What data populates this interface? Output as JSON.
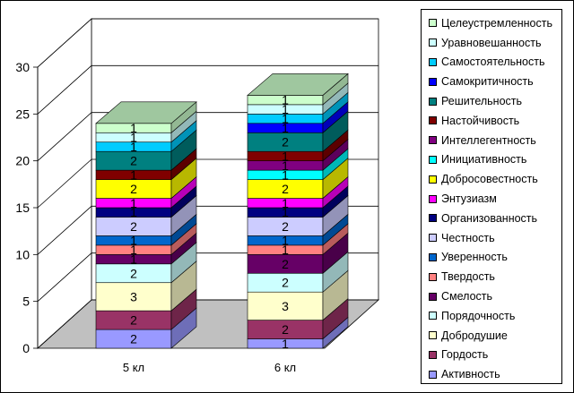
{
  "chart_data": {
    "type": "bar",
    "stacked": true,
    "three_d": true,
    "categories": [
      "5 кл",
      "6 кл"
    ],
    "ylim": [
      0,
      30
    ],
    "yticks": [
      0,
      5,
      10,
      15,
      20,
      25,
      30
    ],
    "grid": true,
    "legend_position": "right",
    "series": [
      {
        "name": "Активность",
        "color": "#9999ff",
        "values": [
          2,
          1
        ]
      },
      {
        "name": "Гордость",
        "color": "#993366",
        "values": [
          2,
          2
        ]
      },
      {
        "name": "Добродушие",
        "color": "#ffffcc",
        "values": [
          3,
          3
        ]
      },
      {
        "name": "Порядочность",
        "color": "#ccffff",
        "values": [
          2,
          2
        ]
      },
      {
        "name": "Смелость",
        "color": "#660066",
        "values": [
          1,
          2
        ]
      },
      {
        "name": "Твердость",
        "color": "#ff8080",
        "values": [
          1,
          1
        ]
      },
      {
        "name": "Уверенность",
        "color": "#0066cc",
        "values": [
          1,
          1
        ]
      },
      {
        "name": "Честность",
        "color": "#ccccff",
        "values": [
          2,
          2
        ]
      },
      {
        "name": "Организованность",
        "color": "#000080",
        "values": [
          1,
          1
        ]
      },
      {
        "name": "Энтузиазм",
        "color": "#ff00ff",
        "values": [
          1,
          1
        ]
      },
      {
        "name": "Добросовестность",
        "color": "#ffff00",
        "values": [
          2,
          2
        ]
      },
      {
        "name": "Инициативность",
        "color": "#00ffff",
        "values": [
          0,
          1
        ]
      },
      {
        "name": "Интеллегентность",
        "color": "#800080",
        "values": [
          0,
          1
        ]
      },
      {
        "name": "Настойчивость",
        "color": "#800000",
        "values": [
          1,
          1
        ]
      },
      {
        "name": "Решительность",
        "color": "#008080",
        "values": [
          2,
          2
        ]
      },
      {
        "name": "Самокритичность",
        "color": "#0000ff",
        "values": [
          0,
          1
        ]
      },
      {
        "name": "Самостоятельность",
        "color": "#00ccff",
        "values": [
          1,
          1
        ]
      },
      {
        "name": "Уравновешанность",
        "color": "#ccffff",
        "values": [
          1,
          1
        ]
      },
      {
        "name": "Целеустремленность",
        "color": "#ccffcc",
        "values": [
          1,
          1
        ]
      }
    ]
  }
}
